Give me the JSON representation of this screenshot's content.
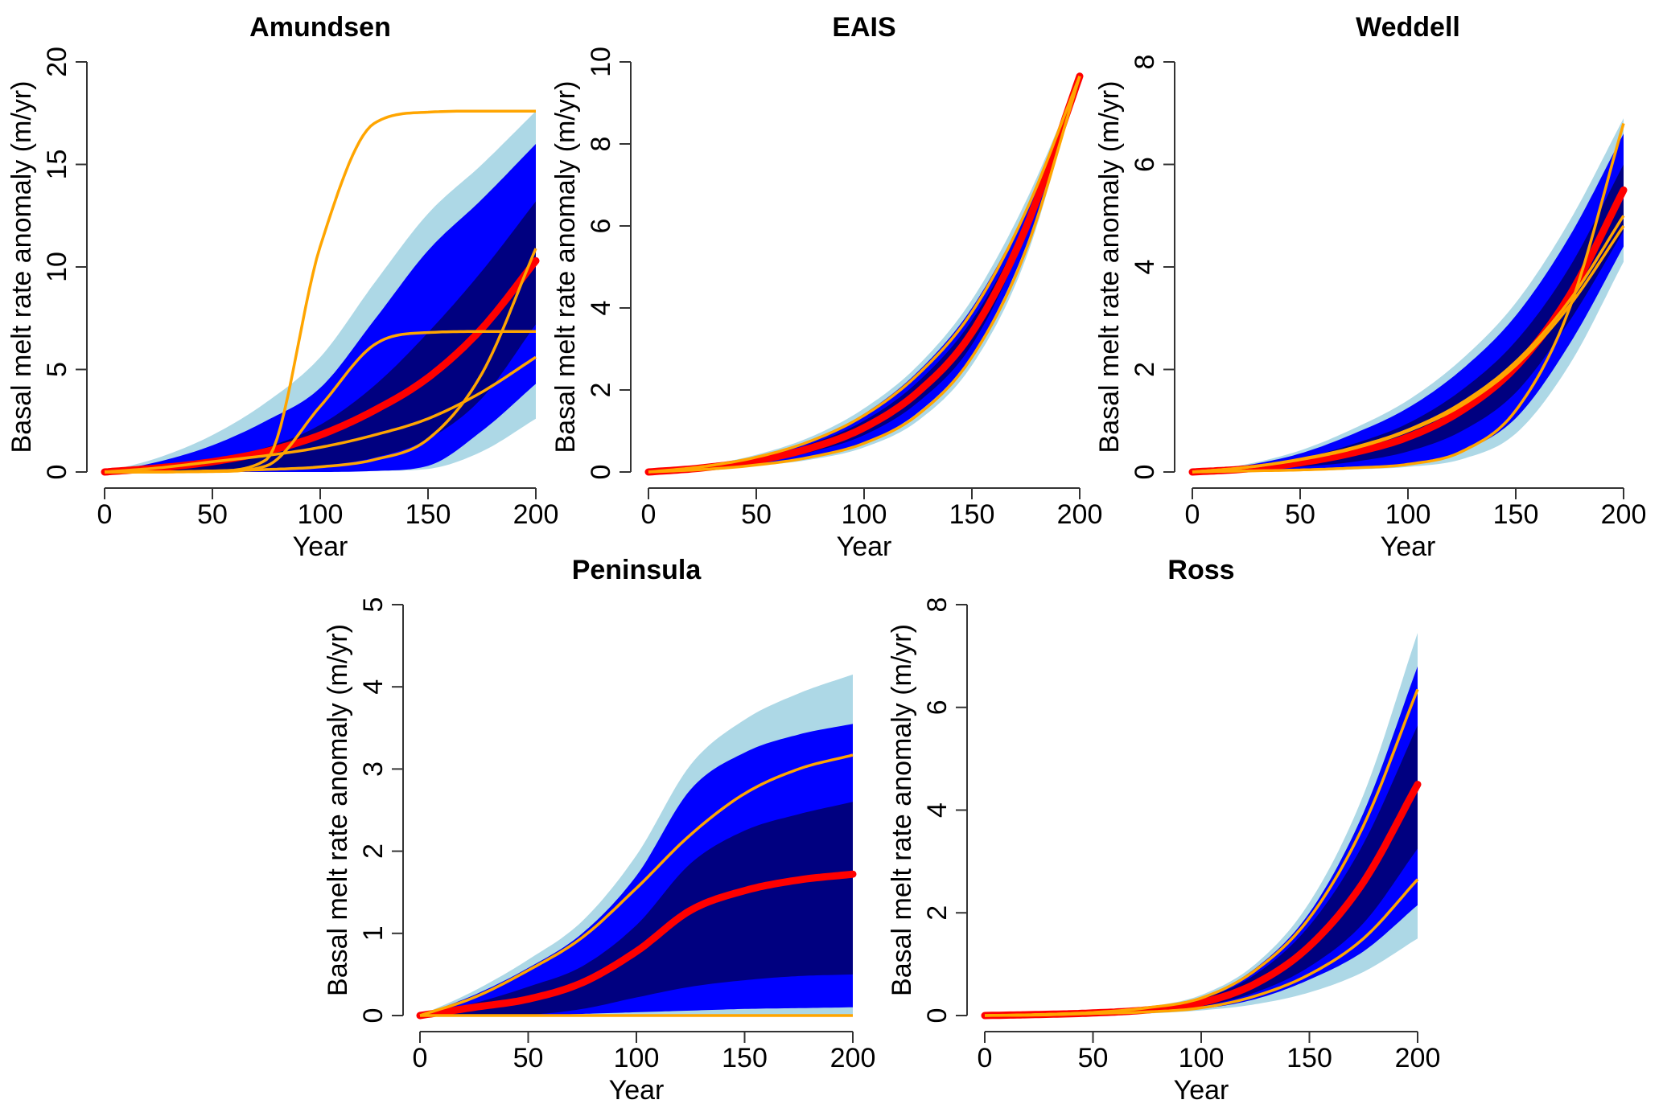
{
  "figure": {
    "colors": {
      "band_outer": "#ADD8E6",
      "band_middle": "#0000FF",
      "band_inner": "#000080",
      "median": "#FF0000",
      "ensemble_member": "#FFA500"
    }
  },
  "chart_data": [
    {
      "type": "area",
      "title": "Amundsen",
      "xlabel": "Year",
      "ylabel": "Basal melt rate anomaly (m/yr)",
      "xlim": [
        0,
        200
      ],
      "ylim": [
        0,
        20
      ],
      "xticks": [
        0,
        50,
        100,
        150,
        200
      ],
      "yticks": [
        0,
        5,
        10,
        15,
        20
      ],
      "grid": false,
      "x": [
        0,
        25,
        50,
        75,
        100,
        125,
        150,
        175,
        200
      ],
      "bands": [
        {
          "name": "outer",
          "upper": [
            0,
            0.7,
            1.8,
            3.4,
            5.6,
            9.2,
            12.6,
            15.0,
            17.6
          ],
          "lower": [
            0,
            0,
            0,
            0,
            0,
            0.05,
            0.15,
            1.0,
            2.6
          ]
        },
        {
          "name": "middle",
          "upper": [
            0,
            0.5,
            1.3,
            2.5,
            4.1,
            7.4,
            10.8,
            13.3,
            16.0
          ],
          "lower": [
            0,
            0,
            0,
            0,
            0,
            0.05,
            0.3,
            2.0,
            4.3
          ]
        },
        {
          "name": "inner",
          "upper": [
            0,
            0.2,
            0.6,
            1.2,
            2.3,
            4.2,
            6.8,
            9.8,
            13.2
          ],
          "lower": [
            0,
            0,
            0.05,
            0.1,
            0.3,
            0.7,
            1.6,
            3.6,
            7.2
          ]
        }
      ],
      "median": [
        0,
        0.2,
        0.5,
        1.0,
        1.8,
        3.0,
        4.6,
        7.0,
        10.3
      ],
      "members": [
        {
          "name": "member-1",
          "values": [
            0,
            0,
            0.05,
            0.6,
            11.0,
            17.0,
            17.55,
            17.6,
            17.6
          ]
        },
        {
          "name": "member-2",
          "values": [
            0,
            0,
            0.02,
            0.3,
            3.2,
            6.2,
            6.8,
            6.85,
            6.85
          ]
        },
        {
          "name": "member-3",
          "values": [
            0,
            0.2,
            0.5,
            0.8,
            1.2,
            1.8,
            2.6,
            3.9,
            5.6
          ]
        },
        {
          "name": "member-4",
          "values": [
            0,
            0,
            0.05,
            0.12,
            0.25,
            0.6,
            1.6,
            4.8,
            10.9
          ]
        }
      ]
    },
    {
      "type": "area",
      "title": "EAIS",
      "xlabel": "Year",
      "ylabel": "Basal melt rate anomaly (m/yr)",
      "xlim": [
        0,
        200
      ],
      "ylim": [
        0,
        10
      ],
      "xticks": [
        0,
        50,
        100,
        150,
        200
      ],
      "yticks": [
        0,
        2,
        4,
        6,
        8,
        10
      ],
      "grid": false,
      "x": [
        0,
        25,
        50,
        75,
        100,
        125,
        150,
        175,
        200
      ],
      "bands": [
        {
          "name": "outer",
          "upper": [
            0,
            0.15,
            0.42,
            0.85,
            1.55,
            2.6,
            4.2,
            6.6,
            9.65
          ],
          "lower": [
            0,
            0.05,
            0.15,
            0.3,
            0.6,
            1.25,
            2.6,
            5.2,
            9.65
          ]
        },
        {
          "name": "middle",
          "upper": [
            0,
            0.13,
            0.37,
            0.78,
            1.42,
            2.45,
            4.0,
            6.4,
            9.65
          ],
          "lower": [
            0,
            0.06,
            0.18,
            0.38,
            0.72,
            1.45,
            2.85,
            5.5,
            9.65
          ]
        },
        {
          "name": "inner",
          "upper": [
            0,
            0.11,
            0.32,
            0.68,
            1.25,
            2.2,
            3.7,
            6.1,
            9.65
          ],
          "lower": [
            0,
            0.08,
            0.23,
            0.48,
            0.9,
            1.7,
            3.1,
            5.8,
            9.65
          ]
        }
      ],
      "median": [
        0,
        0.1,
        0.28,
        0.58,
        1.08,
        1.95,
        3.4,
        5.95,
        9.65
      ],
      "members": [
        {
          "name": "member-1",
          "values": [
            0,
            0.13,
            0.36,
            0.75,
            1.38,
            2.38,
            3.9,
            6.35,
            9.65
          ]
        },
        {
          "name": "member-2",
          "values": [
            0,
            0.06,
            0.17,
            0.36,
            0.7,
            1.4,
            2.8,
            5.4,
            9.65
          ]
        }
      ]
    },
    {
      "type": "area",
      "title": "Weddell",
      "xlabel": "Year",
      "ylabel": "Basal melt rate anomaly (m/yr)",
      "xlim": [
        0,
        200
      ],
      "ylim": [
        0,
        8
      ],
      "xticks": [
        0,
        50,
        100,
        150,
        200
      ],
      "yticks": [
        0,
        2,
        4,
        6,
        8
      ],
      "grid": false,
      "x": [
        0,
        25,
        50,
        75,
        100,
        125,
        150,
        175,
        200
      ],
      "bands": [
        {
          "name": "outer",
          "upper": [
            0,
            0.15,
            0.42,
            0.85,
            1.4,
            2.2,
            3.3,
            4.9,
            6.9
          ],
          "lower": [
            0,
            0,
            0.02,
            0.05,
            0.1,
            0.25,
            0.75,
            2.1,
            4.1
          ]
        },
        {
          "name": "middle",
          "upper": [
            0,
            0.13,
            0.36,
            0.75,
            1.25,
            2.0,
            3.05,
            4.6,
            6.6
          ],
          "lower": [
            0,
            0,
            0.03,
            0.07,
            0.15,
            0.4,
            1.05,
            2.5,
            4.4
          ]
        },
        {
          "name": "inner",
          "upper": [
            0,
            0.1,
            0.26,
            0.55,
            0.95,
            1.6,
            2.55,
            4.0,
            6.0
          ],
          "lower": [
            0,
            0.03,
            0.1,
            0.2,
            0.4,
            0.8,
            1.55,
            2.95,
            4.7
          ]
        }
      ],
      "median": [
        0,
        0.06,
        0.18,
        0.38,
        0.68,
        1.2,
        2.05,
        3.45,
        5.5
      ],
      "members": [
        {
          "name": "member-1",
          "values": [
            0,
            0.09,
            0.25,
            0.48,
            0.82,
            1.35,
            2.15,
            3.35,
            5.0
          ]
        },
        {
          "name": "member-2",
          "values": [
            0,
            0.09,
            0.24,
            0.46,
            0.8,
            1.3,
            2.08,
            3.25,
            4.8
          ]
        },
        {
          "name": "member-3",
          "values": [
            0,
            0.02,
            0.04,
            0.08,
            0.15,
            0.4,
            1.2,
            3.2,
            6.8
          ]
        }
      ]
    },
    {
      "type": "area",
      "title": "Peninsula",
      "xlabel": "Year",
      "ylabel": "Basal melt rate anomaly (m/yr)",
      "xlim": [
        0,
        200
      ],
      "ylim": [
        0,
        5
      ],
      "xticks": [
        0,
        50,
        100,
        150,
        200
      ],
      "yticks": [
        0,
        1,
        2,
        3,
        4,
        5
      ],
      "grid": false,
      "x": [
        0,
        25,
        50,
        75,
        100,
        125,
        150,
        175,
        200
      ],
      "bands": [
        {
          "name": "outer",
          "upper": [
            0,
            0.3,
            0.68,
            1.15,
            1.95,
            3.05,
            3.6,
            3.92,
            4.15
          ],
          "lower": [
            0,
            0,
            0,
            0,
            0,
            0,
            0,
            0,
            0
          ]
        },
        {
          "name": "middle",
          "upper": [
            0,
            0.25,
            0.58,
            1.0,
            1.7,
            2.75,
            3.2,
            3.42,
            3.55
          ],
          "lower": [
            0,
            0,
            0,
            0.02,
            0.04,
            0.06,
            0.08,
            0.09,
            0.1
          ]
        },
        {
          "name": "inner",
          "upper": [
            0,
            0.15,
            0.35,
            0.6,
            1.1,
            1.85,
            2.25,
            2.45,
            2.6
          ],
          "lower": [
            0,
            0,
            0.01,
            0.08,
            0.22,
            0.35,
            0.43,
            0.48,
            0.5
          ]
        }
      ],
      "median": [
        0,
        0.1,
        0.2,
        0.4,
        0.78,
        1.28,
        1.52,
        1.65,
        1.72
      ],
      "members": [
        {
          "name": "member-1",
          "values": [
            0,
            0.22,
            0.55,
            0.95,
            1.55,
            2.2,
            2.7,
            3.0,
            3.17
          ]
        },
        {
          "name": "member-2",
          "values": [
            0,
            0,
            0,
            0,
            0,
            0,
            0,
            0,
            0
          ]
        }
      ]
    },
    {
      "type": "area",
      "title": "Ross",
      "xlabel": "Year",
      "ylabel": "Basal melt rate anomaly (m/yr)",
      "xlim": [
        0,
        200
      ],
      "ylim": [
        0,
        8
      ],
      "xticks": [
        0,
        50,
        100,
        150,
        200
      ],
      "yticks": [
        0,
        2,
        4,
        6,
        8
      ],
      "grid": false,
      "x": [
        0,
        25,
        50,
        75,
        100,
        125,
        150,
        175,
        200
      ],
      "bands": [
        {
          "name": "outer",
          "upper": [
            0,
            0.03,
            0.08,
            0.17,
            0.4,
            1.0,
            2.2,
            4.3,
            7.45
          ],
          "lower": [
            0,
            0,
            0.02,
            0.04,
            0.1,
            0.22,
            0.45,
            0.85,
            1.5
          ]
        },
        {
          "name": "middle",
          "upper": [
            0,
            0.03,
            0.07,
            0.16,
            0.36,
            0.92,
            2.0,
            3.95,
            6.8
          ],
          "lower": [
            0,
            0.01,
            0.03,
            0.06,
            0.13,
            0.32,
            0.7,
            1.25,
            2.15
          ]
        },
        {
          "name": "inner",
          "upper": [
            0,
            0.02,
            0.06,
            0.14,
            0.32,
            0.8,
            1.75,
            3.35,
            5.65
          ],
          "lower": [
            0,
            0.01,
            0.04,
            0.08,
            0.18,
            0.45,
            0.95,
            1.8,
            3.25
          ]
        }
      ],
      "median": [
        0,
        0.02,
        0.05,
        0.11,
        0.25,
        0.62,
        1.35,
        2.6,
        4.5
      ],
      "members": [
        {
          "name": "member-1",
          "values": [
            0,
            0.02,
            0.06,
            0.15,
            0.34,
            0.88,
            1.9,
            3.7,
            6.35
          ]
        },
        {
          "name": "member-2",
          "values": [
            0,
            0.01,
            0.04,
            0.07,
            0.15,
            0.38,
            0.8,
            1.5,
            2.65
          ]
        }
      ]
    }
  ]
}
